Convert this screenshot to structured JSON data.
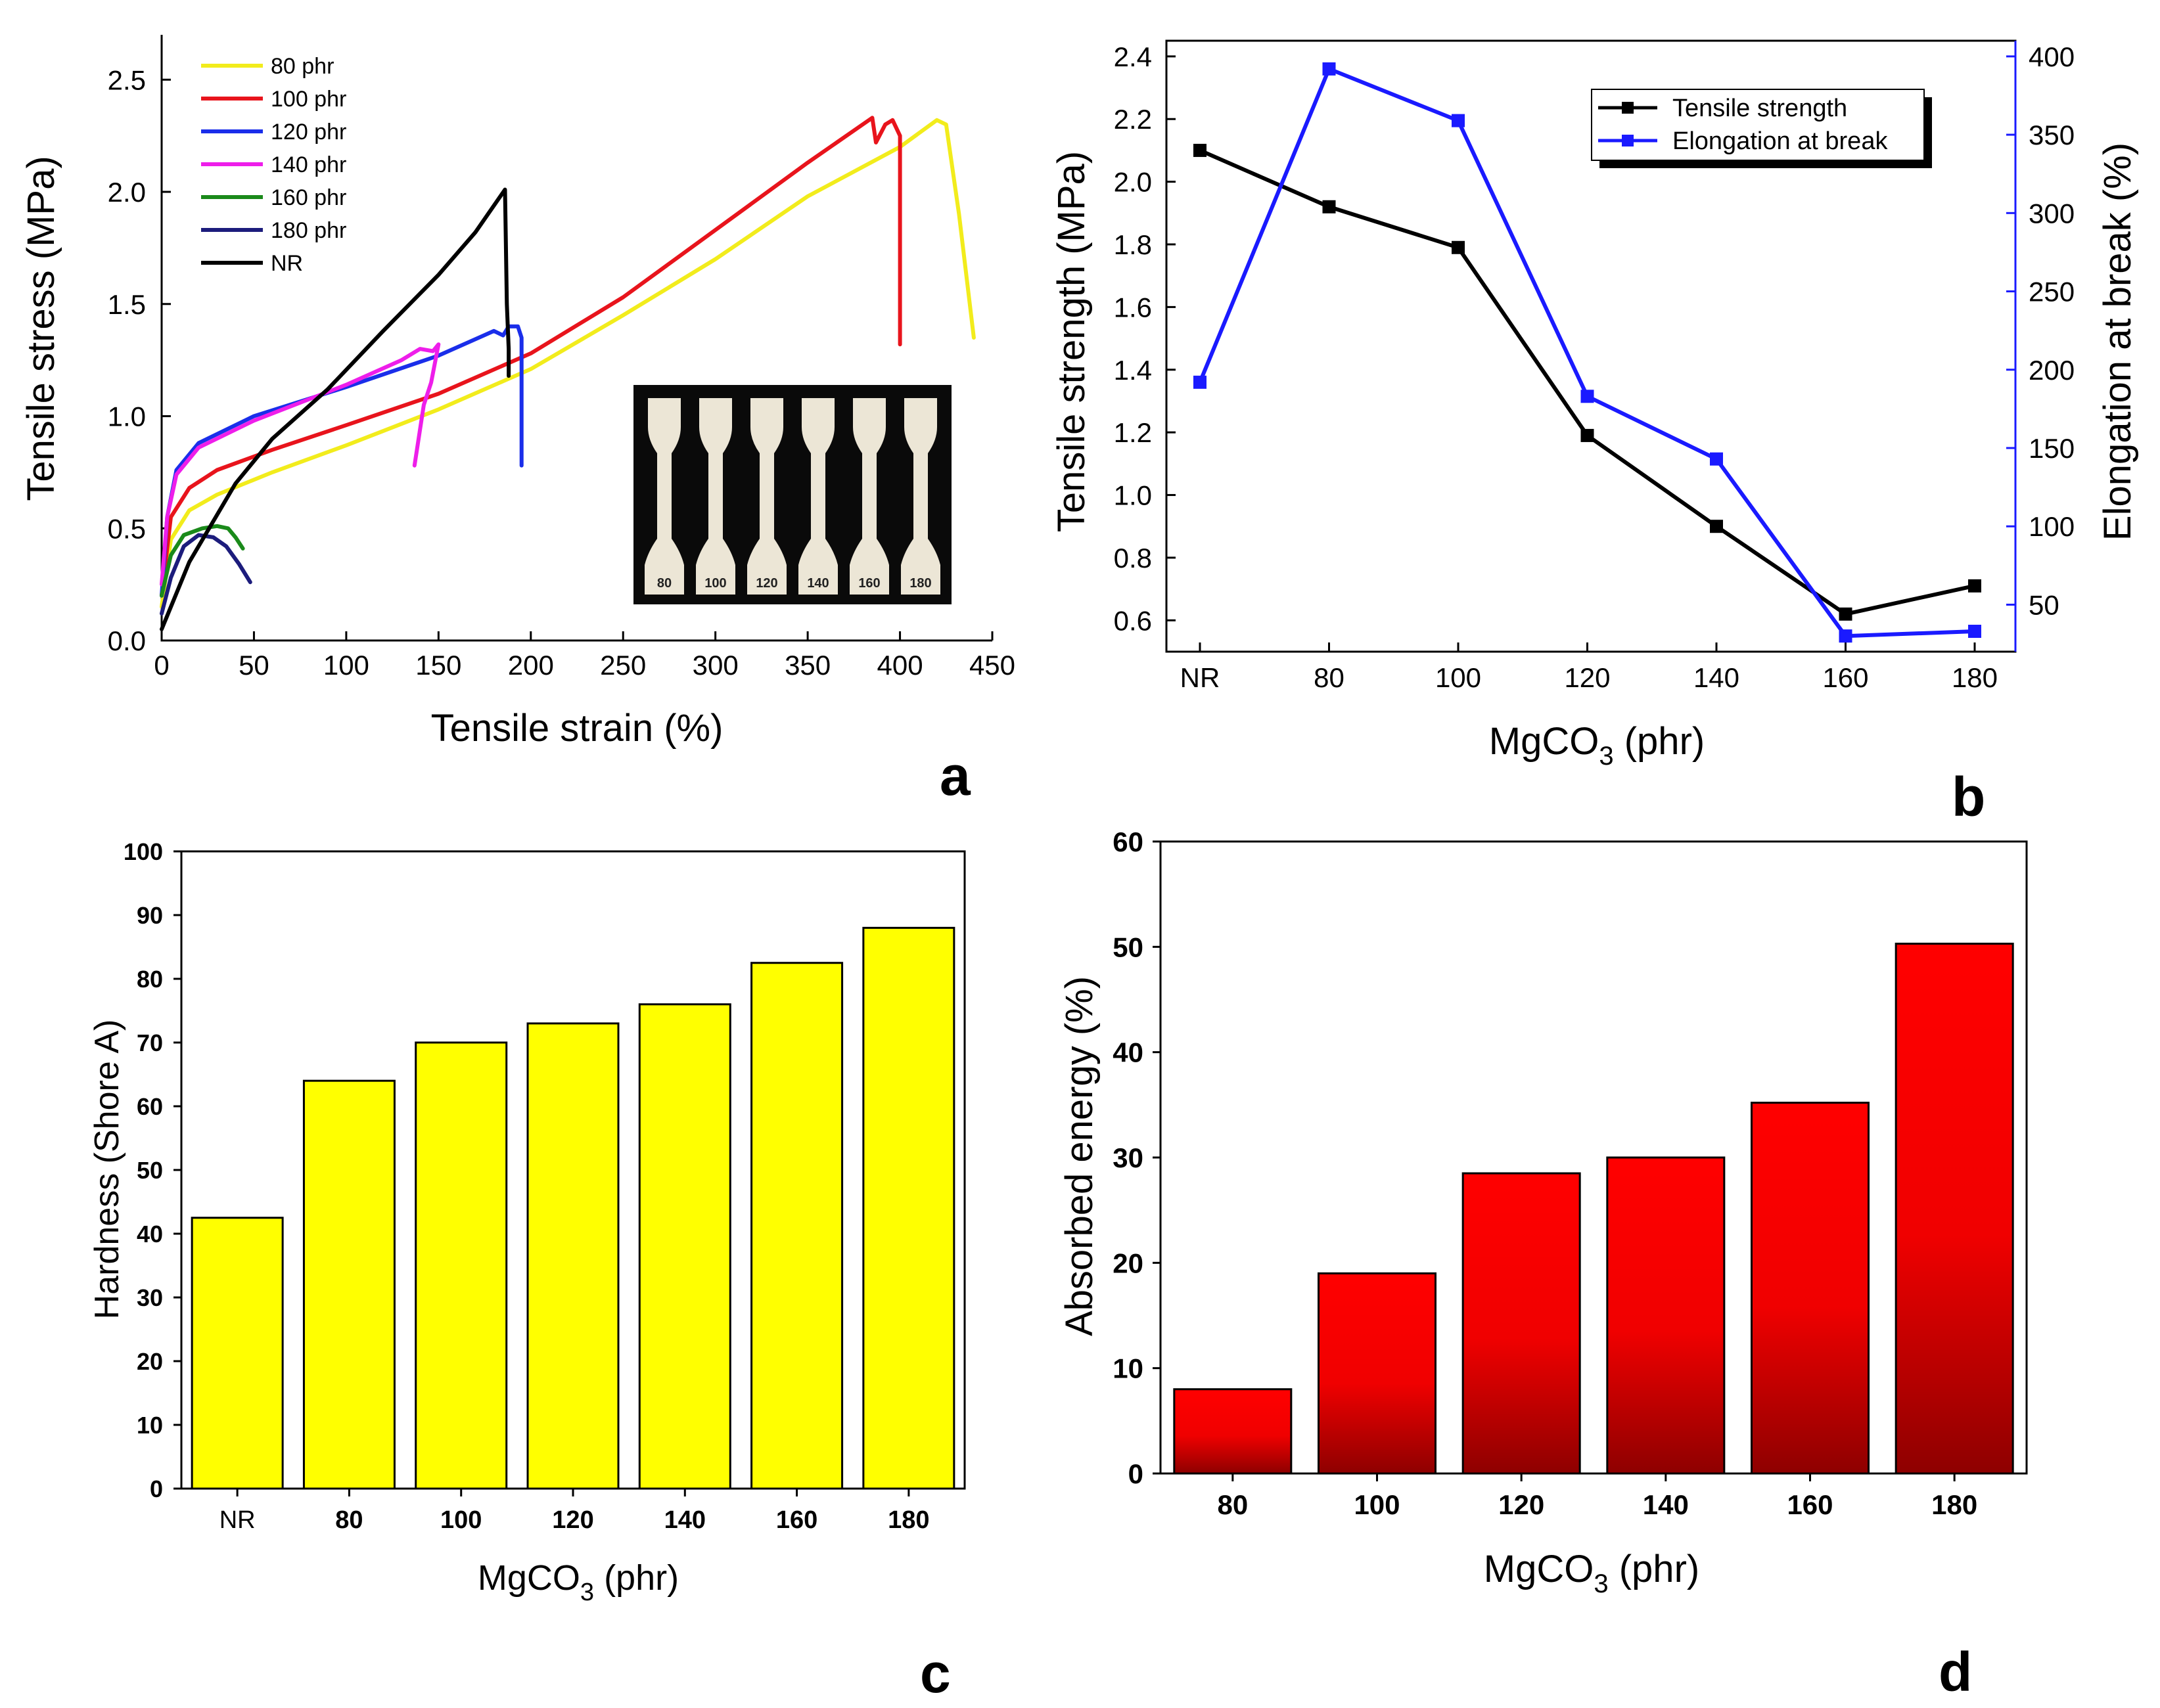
{
  "figure": {
    "panels": [
      "a",
      "b",
      "c",
      "d"
    ]
  },
  "chart_data": [
    {
      "id": "a",
      "type": "line",
      "xlabel": "Tensile strain (%)",
      "ylabel": "Tensile stress (MPa)",
      "xlim": [
        0,
        450
      ],
      "ylim": [
        0,
        2.7
      ],
      "xticks": [
        "0",
        "50",
        "100",
        "150",
        "200",
        "250",
        "300",
        "350",
        "400",
        "450"
      ],
      "yticks": [
        "0.0",
        "0.5",
        "1.0",
        "1.5",
        "2.0",
        "2.5"
      ],
      "legend_position": "top-left",
      "series": [
        {
          "name": "80 phr",
          "color": "#f2ec1c",
          "points": [
            [
              0,
              0.15
            ],
            [
              5,
              0.45
            ],
            [
              15,
              0.58
            ],
            [
              30,
              0.65
            ],
            [
              60,
              0.75
            ],
            [
              100,
              0.87
            ],
            [
              150,
              1.03
            ],
            [
              200,
              1.21
            ],
            [
              250,
              1.45
            ],
            [
              300,
              1.7
            ],
            [
              350,
              1.98
            ],
            [
              400,
              2.2
            ],
            [
              420,
              2.32
            ],
            [
              425,
              2.3
            ],
            [
              432,
              1.9
            ],
            [
              440,
              1.35
            ]
          ]
        },
        {
          "name": "100 phr",
          "color": "#e8141c",
          "points": [
            [
              0,
              0.2
            ],
            [
              5,
              0.55
            ],
            [
              15,
              0.68
            ],
            [
              30,
              0.76
            ],
            [
              60,
              0.85
            ],
            [
              100,
              0.96
            ],
            [
              150,
              1.1
            ],
            [
              200,
              1.28
            ],
            [
              250,
              1.53
            ],
            [
              300,
              1.83
            ],
            [
              350,
              2.13
            ],
            [
              385,
              2.33
            ],
            [
              387,
              2.22
            ],
            [
              392,
              2.3
            ],
            [
              396,
              2.32
            ],
            [
              400,
              2.25
            ],
            [
              400,
              1.32
            ]
          ]
        },
        {
          "name": "120 phr",
          "color": "#1a2eea",
          "points": [
            [
              0,
              0.2
            ],
            [
              3,
              0.55
            ],
            [
              8,
              0.76
            ],
            [
              20,
              0.88
            ],
            [
              50,
              1.0
            ],
            [
              100,
              1.13
            ],
            [
              150,
              1.27
            ],
            [
              180,
              1.38
            ],
            [
              185,
              1.36
            ],
            [
              188,
              1.4
            ],
            [
              193,
              1.4
            ],
            [
              195,
              1.35
            ],
            [
              195,
              0.78
            ]
          ]
        },
        {
          "name": "140 phr",
          "color": "#ee1eea",
          "points": [
            [
              0,
              0.25
            ],
            [
              3,
              0.55
            ],
            [
              8,
              0.74
            ],
            [
              20,
              0.86
            ],
            [
              50,
              0.98
            ],
            [
              100,
              1.14
            ],
            [
              130,
              1.25
            ],
            [
              140,
              1.3
            ],
            [
              147,
              1.29
            ],
            [
              150,
              1.32
            ],
            [
              146,
              1.15
            ],
            [
              142,
              1.05
            ],
            [
              137,
              0.78
            ]
          ]
        },
        {
          "name": "160 phr",
          "color": "#1a8a1a",
          "points": [
            [
              0,
              0.2
            ],
            [
              5,
              0.38
            ],
            [
              12,
              0.47
            ],
            [
              22,
              0.5
            ],
            [
              30,
              0.51
            ],
            [
              36,
              0.5
            ],
            [
              40,
              0.46
            ],
            [
              44,
              0.41
            ]
          ]
        },
        {
          "name": "180 phr",
          "color": "#1c1c7c",
          "points": [
            [
              0,
              0.12
            ],
            [
              5,
              0.28
            ],
            [
              12,
              0.42
            ],
            [
              20,
              0.47
            ],
            [
              28,
              0.46
            ],
            [
              35,
              0.42
            ],
            [
              42,
              0.34
            ],
            [
              48,
              0.26
            ]
          ]
        },
        {
          "name": "NR",
          "color": "#000000",
          "points": [
            [
              0,
              0.05
            ],
            [
              15,
              0.35
            ],
            [
              40,
              0.7
            ],
            [
              60,
              0.9
            ],
            [
              90,
              1.12
            ],
            [
              120,
              1.38
            ],
            [
              150,
              1.63
            ],
            [
              170,
              1.82
            ],
            [
              186,
              2.01
            ],
            [
              187,
              1.5
            ],
            [
              188,
              1.3
            ],
            [
              188,
              1.18
            ]
          ]
        }
      ],
      "inset": {
        "labels": [
          "80",
          "100",
          "120",
          "140",
          "160",
          "180"
        ]
      },
      "panel_label": "a"
    },
    {
      "id": "b",
      "type": "line",
      "xlabel_main": "MgCO",
      "xlabel_sub": "3",
      "xlabel_tail": " (phr)",
      "ylabel_left": "Tensile strength (MPa)",
      "ylabel_right": "Elongation at break (%)",
      "categories": [
        "NR",
        "80",
        "100",
        "120",
        "140",
        "160",
        "180"
      ],
      "ylim_left": [
        0.5,
        2.45
      ],
      "ylim_right": [
        20,
        410
      ],
      "yticks_left": [
        "0.6",
        "0.8",
        "1.0",
        "1.2",
        "1.4",
        "1.6",
        "1.8",
        "2.0",
        "2.2",
        "2.4"
      ],
      "yticks_right": [
        "50",
        "100",
        "150",
        "200",
        "250",
        "300",
        "350",
        "400"
      ],
      "legend_position": "top-right",
      "series": [
        {
          "name": "Tensile strength",
          "axis": "left",
          "color": "#000000",
          "values": [
            2.1,
            1.92,
            1.79,
            1.19,
            0.9,
            0.62,
            0.71
          ]
        },
        {
          "name": "Elongation at break",
          "axis": "right",
          "color": "#1a1aff",
          "values": [
            192,
            392,
            359,
            183,
            143,
            30,
            33
          ]
        }
      ],
      "panel_label": "b"
    },
    {
      "id": "c",
      "type": "bar",
      "xlabel_main": "MgCO",
      "xlabel_sub": "3",
      "xlabel_tail": " (phr)",
      "ylabel": "Hardness (Shore A)",
      "categories": [
        "NR",
        "80",
        "100",
        "120",
        "140",
        "160",
        "180"
      ],
      "values": [
        42.5,
        64,
        70,
        73,
        76,
        82.5,
        88
      ],
      "ylim": [
        0,
        100
      ],
      "yticks": [
        "0",
        "10",
        "20",
        "30",
        "40",
        "50",
        "60",
        "70",
        "80",
        "90",
        "100"
      ],
      "bar_color": "#ffff00",
      "panel_label": "c"
    },
    {
      "id": "d",
      "type": "bar",
      "xlabel_main": "MgCO",
      "xlabel_sub": "3",
      "xlabel_tail": " (phr)",
      "ylabel": "Absorbed energy (%)",
      "categories": [
        "80",
        "100",
        "120",
        "140",
        "160",
        "180"
      ],
      "values": [
        8,
        19,
        28.5,
        30,
        35.2,
        50.3
      ],
      "ylim": [
        0,
        60
      ],
      "yticks": [
        "0",
        "10",
        "20",
        "30",
        "40",
        "50",
        "60"
      ],
      "bar_color": "#ff0000",
      "panel_label": "d"
    }
  ]
}
